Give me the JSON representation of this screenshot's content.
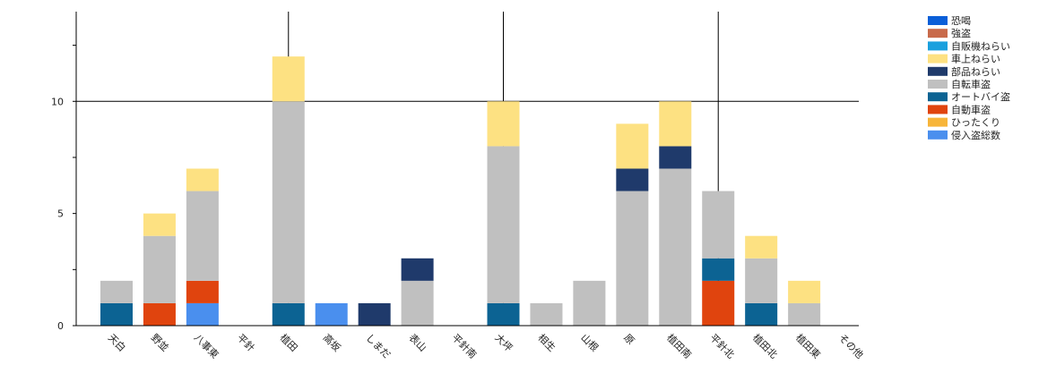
{
  "chart_data": {
    "type": "bar",
    "stacked": true,
    "categories": [
      "天白",
      "野並",
      "八事東",
      "平針",
      "植田",
      "高坂",
      "しまだ",
      "表山",
      "平針南",
      "大坪",
      "相生",
      "山根",
      "原",
      "植田南",
      "平針北",
      "植田北",
      "植田東",
      "その他"
    ],
    "series": [
      {
        "name": "侵入盗総数",
        "color": "#4a8fee",
        "values": [
          0,
          0,
          1,
          0,
          0,
          1,
          0,
          0,
          0,
          0,
          0,
          0,
          0,
          0,
          0,
          0,
          0,
          0
        ]
      },
      {
        "name": "ひったくり",
        "color": "#f7b53a",
        "values": [
          0,
          0,
          0,
          0,
          0,
          0,
          0,
          0,
          0,
          0,
          0,
          0,
          0,
          0,
          0,
          0,
          0,
          0
        ]
      },
      {
        "name": "自動車盗",
        "color": "#e0440e",
        "values": [
          0,
          1,
          1,
          0,
          0,
          0,
          0,
          0,
          0,
          0,
          0,
          0,
          0,
          0,
          2,
          0,
          0,
          0
        ]
      },
      {
        "name": "オートバイ盗",
        "color": "#0c6393",
        "values": [
          1,
          0,
          0,
          0,
          1,
          0,
          0,
          0,
          0,
          1,
          0,
          0,
          0,
          0,
          1,
          1,
          0,
          0
        ]
      },
      {
        "name": "自転車盗",
        "color": "#c0c0c0",
        "values": [
          1,
          3,
          4,
          0,
          9,
          0,
          0,
          2,
          0,
          7,
          1,
          2,
          6,
          7,
          3,
          2,
          1,
          0
        ]
      },
      {
        "name": "部品ねらい",
        "color": "#1f3a6b",
        "values": [
          0,
          0,
          0,
          0,
          0,
          0,
          1,
          1,
          0,
          0,
          0,
          0,
          1,
          1,
          0,
          0,
          0,
          0
        ]
      },
      {
        "name": "車上ねらい",
        "color": "#fde182",
        "values": [
          0,
          1,
          1,
          0,
          2,
          0,
          0,
          0,
          0,
          2,
          0,
          0,
          2,
          2,
          0,
          1,
          1,
          0
        ]
      },
      {
        "name": "自販機ねらい",
        "color": "#1aa0de",
        "values": [
          0,
          0,
          0,
          0,
          0,
          0,
          0,
          0,
          0,
          0,
          0,
          0,
          0,
          0,
          0,
          0,
          0,
          0
        ]
      },
      {
        "name": "強盗",
        "color": "#c86a4a",
        "values": [
          0,
          0,
          0,
          0,
          0,
          0,
          0,
          0,
          0,
          0,
          0,
          0,
          0,
          0,
          0,
          0,
          0,
          0
        ]
      },
      {
        "name": "恐喝",
        "color": "#0a5fd8",
        "values": [
          0,
          0,
          0,
          0,
          0,
          0,
          0,
          0,
          0,
          0,
          0,
          0,
          0,
          0,
          0,
          0,
          0,
          0
        ]
      }
    ],
    "legend_order": [
      "恐喝",
      "強盗",
      "自販機ねらい",
      "車上ねらい",
      "部品ねらい",
      "自転車盗",
      "オートバイ盗",
      "自動車盗",
      "ひったくり",
      "侵入盗総数"
    ],
    "y_ticks": [
      0,
      5,
      10
    ],
    "ylim": [
      0,
      14
    ],
    "legend_position": "top-right",
    "grid": "y-major"
  }
}
